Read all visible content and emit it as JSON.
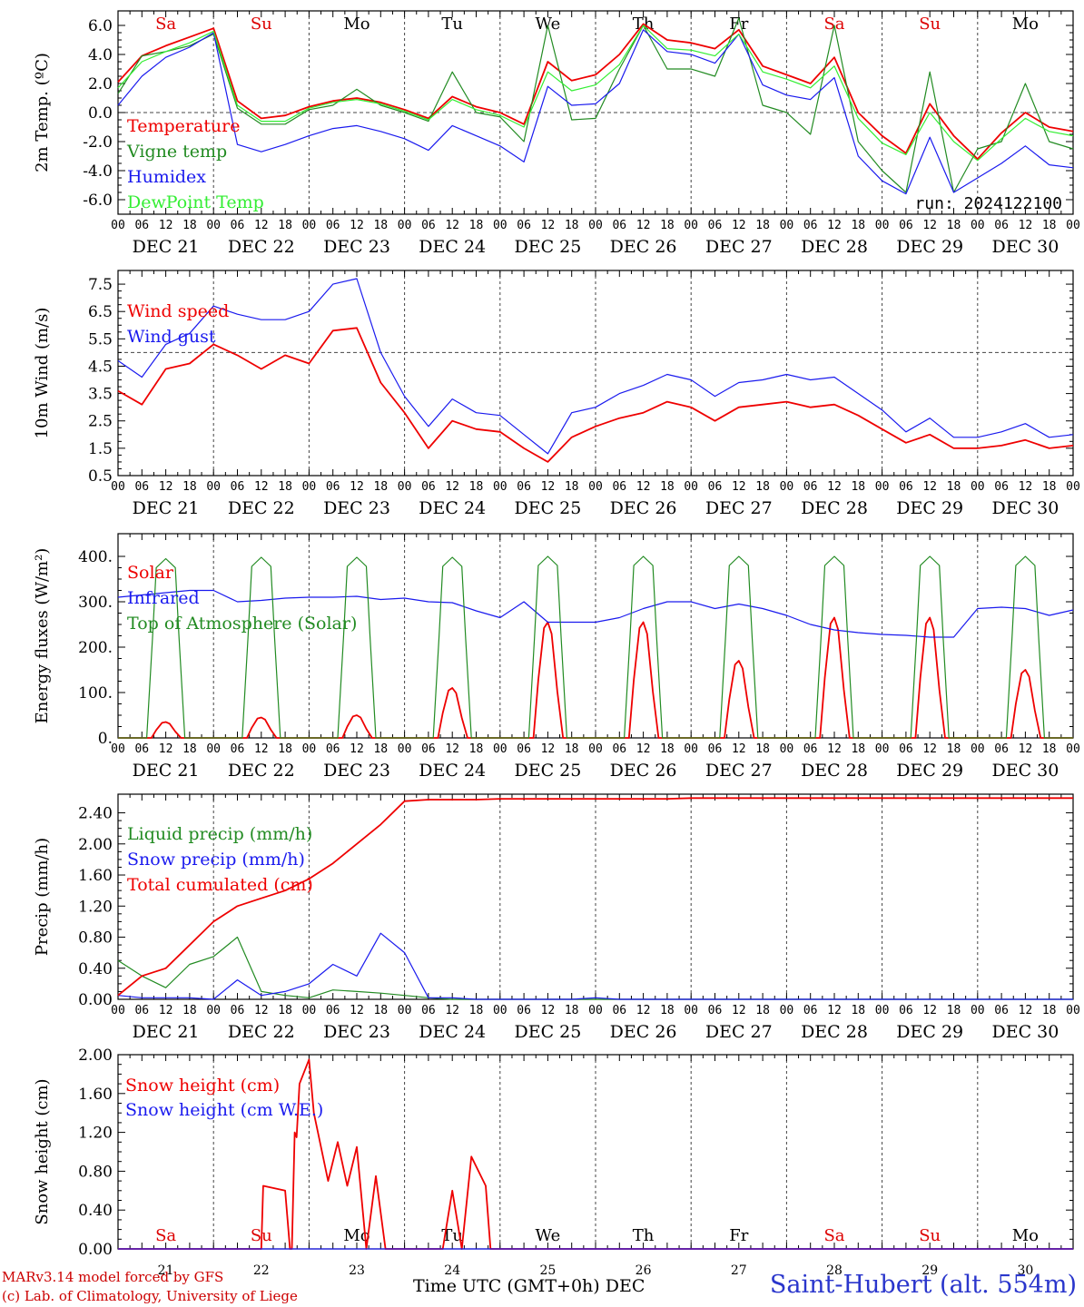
{
  "days": [
    "Sa",
    "Su",
    "Mo",
    "Tu",
    "We",
    "Th",
    "Fr",
    "Sa",
    "Su",
    "Mo"
  ],
  "dates": [
    "DEC 21",
    "DEC 22",
    "DEC 23",
    "DEC 24",
    "DEC 25",
    "DEC 26",
    "DEC 27",
    "DEC 28",
    "DEC 29",
    "DEC 30"
  ],
  "bottom_dates": [
    "21",
    "22",
    "23",
    "24",
    "25",
    "26",
    "27",
    "28",
    "29",
    "30"
  ],
  "hour_ticks": [
    "00",
    "06",
    "12",
    "18"
  ],
  "colors": {
    "weekend": "#dd0000",
    "weekday": "#000000",
    "red": "#ee0000",
    "green": "#228b22",
    "blue": "#1a1aee",
    "lightgreen": "#33ee33"
  },
  "footer": {
    "model": "MARv3.14 model forced by GFS",
    "credit": "(c) Lab. of Climatology, University of Liege",
    "xlabel": "Time UTC (GMT+0h) DEC",
    "station": "Saint-Hubert (alt. 554m)"
  },
  "chart_data": [
    {
      "type": "line",
      "ylabel": "2m Temp. (ºC)",
      "ylim": [
        -7,
        7
      ],
      "yticks": [
        "6.0",
        "4.0",
        "2.0",
        "0.0",
        "-2.0",
        "-4.0",
        "-6.0"
      ],
      "ytick_values": [
        6,
        4,
        2,
        0,
        -2,
        -4,
        -6
      ],
      "annotation": "run: 2024122100",
      "x_days": [
        0,
        0.25,
        0.5,
        0.75,
        1,
        1.25,
        1.5,
        1.75,
        2,
        2.25,
        2.5,
        2.75,
        3,
        3.25,
        3.5,
        3.75,
        4,
        4.25,
        4.5,
        4.75,
        5,
        5.25,
        5.5,
        5.75,
        6,
        6.25,
        6.5,
        6.75,
        7,
        7.25,
        7.5,
        7.75,
        8,
        8.25,
        8.5,
        8.75,
        9,
        9.25,
        9.5,
        9.75,
        10
      ],
      "series": [
        {
          "name": "Temperature",
          "color": "#ee0000",
          "values": [
            2.1,
            3.9,
            4.6,
            5.2,
            5.8,
            0.8,
            -0.4,
            -0.2,
            0.4,
            0.8,
            1.0,
            0.7,
            0.2,
            -0.4,
            1.1,
            0.4,
            0.0,
            -0.8,
            3.5,
            2.2,
            2.6,
            4.0,
            6.1,
            5.0,
            4.8,
            4.4,
            5.7,
            3.2,
            2.6,
            2.0,
            3.8,
            0.0,
            -1.6,
            -2.8,
            0.6,
            -1.6,
            -3.2,
            -1.4,
            0.0,
            -1.0,
            -1.3
          ]
        },
        {
          "name": "Vigne temp",
          "color": "#228b22",
          "values": [
            1.3,
            3.9,
            4.2,
            4.6,
            5.4,
            0.3,
            -0.8,
            -0.8,
            0.2,
            0.5,
            1.6,
            0.5,
            0.0,
            -0.6,
            2.8,
            0.0,
            -0.3,
            -2.0,
            6.0,
            -0.5,
            -0.4,
            3.0,
            6.0,
            3.0,
            3.0,
            2.5,
            6.5,
            0.5,
            0.0,
            -1.5,
            6.0,
            -2.0,
            -4.0,
            -5.5,
            2.8,
            -5.5,
            -2.5,
            -2.0,
            2.0,
            -2.0,
            -2.5
          ]
        },
        {
          "name": "Humidex",
          "color": "#1a1aee",
          "values": [
            0.5,
            2.5,
            3.8,
            4.5,
            5.5,
            -2.2,
            -2.7,
            -2.2,
            -1.6,
            -1.1,
            -0.9,
            -1.3,
            -1.8,
            -2.6,
            -0.9,
            -1.6,
            -2.3,
            -3.4,
            1.8,
            0.5,
            0.6,
            2.0,
            5.7,
            4.2,
            4.0,
            3.4,
            5.4,
            1.9,
            1.2,
            0.9,
            2.4,
            -3.0,
            -4.7,
            -5.6,
            -1.7,
            -5.5,
            -4.5,
            -3.5,
            -2.3,
            -3.6,
            -3.8
          ]
        },
        {
          "name": "DewPoint Temp",
          "color": "#33ee33",
          "values": [
            1.7,
            3.5,
            4.2,
            4.8,
            5.6,
            0.5,
            -0.6,
            -0.6,
            0.3,
            0.7,
            0.9,
            0.6,
            0.1,
            -0.5,
            0.9,
            0.2,
            -0.2,
            -1.0,
            2.8,
            1.5,
            1.9,
            3.3,
            6.0,
            4.4,
            4.3,
            3.9,
            5.4,
            2.8,
            2.3,
            1.7,
            3.2,
            -0.4,
            -2.1,
            -2.9,
            0.0,
            -2.0,
            -3.3,
            -1.8,
            -0.4,
            -1.3,
            -1.6
          ]
        }
      ]
    },
    {
      "type": "line",
      "ylabel": "10m Wind (m/s)",
      "ylim": [
        0.5,
        8.0
      ],
      "yticks": [
        "7.5",
        "6.5",
        "5.5",
        "4.5",
        "3.5",
        "2.5",
        "1.5",
        "0.5"
      ],
      "ytick_values": [
        7.5,
        6.5,
        5.5,
        4.5,
        3.5,
        2.5,
        1.5,
        0.5
      ],
      "x_days": [
        0,
        0.25,
        0.5,
        0.75,
        1,
        1.25,
        1.5,
        1.75,
        2,
        2.25,
        2.5,
        2.75,
        3,
        3.25,
        3.5,
        3.75,
        4,
        4.25,
        4.5,
        4.75,
        5,
        5.25,
        5.5,
        5.75,
        6,
        6.25,
        6.5,
        6.75,
        7,
        7.25,
        7.5,
        7.75,
        8,
        8.25,
        8.5,
        8.75,
        9,
        9.25,
        9.5,
        9.75,
        10
      ],
      "series": [
        {
          "name": "Wind speed",
          "color": "#ee0000",
          "values": [
            3.6,
            3.1,
            4.4,
            4.6,
            5.3,
            4.9,
            4.4,
            4.9,
            4.6,
            5.8,
            5.9,
            3.9,
            2.8,
            1.5,
            2.5,
            2.2,
            2.1,
            1.5,
            1.0,
            1.9,
            2.3,
            2.6,
            2.8,
            3.2,
            3.0,
            2.5,
            3.0,
            3.1,
            3.2,
            3.0,
            3.1,
            2.7,
            2.2,
            1.7,
            2.0,
            1.5,
            1.5,
            1.6,
            1.8,
            1.5,
            1.6
          ]
        },
        {
          "name": "Wind gust",
          "color": "#1a1aee",
          "values": [
            4.7,
            4.1,
            5.3,
            5.7,
            6.7,
            6.4,
            6.2,
            6.2,
            6.5,
            7.5,
            7.7,
            5.0,
            3.4,
            2.3,
            3.3,
            2.8,
            2.7,
            2.0,
            1.3,
            2.8,
            3.0,
            3.5,
            3.8,
            4.2,
            4.0,
            3.4,
            3.9,
            4.0,
            4.2,
            4.0,
            4.1,
            3.5,
            2.9,
            2.1,
            2.6,
            1.9,
            1.9,
            2.1,
            2.4,
            1.9,
            2.0
          ]
        }
      ]
    },
    {
      "type": "line",
      "ylabel": "Energy fluxes (W/m²)",
      "ylim": [
        0,
        450
      ],
      "yticks": [
        "400.",
        "300.",
        "200.",
        "100.",
        "0."
      ],
      "ytick_values": [
        400,
        300,
        200,
        100,
        0
      ],
      "x_days": [
        0,
        0.25,
        0.5,
        0.75,
        1,
        1.25,
        1.5,
        1.75,
        2,
        2.25,
        2.5,
        2.75,
        3,
        3.25,
        3.5,
        3.75,
        4,
        4.25,
        4.5,
        4.75,
        5,
        5.25,
        5.5,
        5.75,
        6,
        6.25,
        6.5,
        6.75,
        7,
        7.25,
        7.5,
        7.75,
        8,
        8.25,
        8.5,
        8.75,
        9,
        9.25,
        9.5,
        9.75,
        10
      ],
      "series": [
        {
          "name": "Solar",
          "color": "#ee0000",
          "peaks": [
            35,
            45,
            50,
            110,
            255,
            255,
            170,
            265,
            265,
            150
          ]
        },
        {
          "name": "Infrared",
          "color": "#1a1aee",
          "values": [
            310,
            315,
            320,
            325,
            325,
            300,
            303,
            308,
            310,
            310,
            312,
            305,
            308,
            300,
            298,
            280,
            265,
            300,
            255,
            255,
            255,
            265,
            285,
            300,
            300,
            285,
            295,
            285,
            270,
            250,
            238,
            232,
            228,
            226,
            222,
            222,
            285,
            288,
            285,
            270,
            282
          ]
        },
        {
          "name": "Top of Atmosphere (Solar)",
          "color": "#228b22",
          "peaks": [
            395,
            398,
            398,
            398,
            400,
            400,
            400,
            400,
            400,
            400
          ]
        }
      ]
    },
    {
      "type": "line",
      "ylabel": "Precip (mm/h)",
      "ylim": [
        0,
        2.64
      ],
      "yticks": [
        "2.40",
        "2.00",
        "1.60",
        "1.20",
        "0.80",
        "0.40",
        "0.00"
      ],
      "ytick_values": [
        2.4,
        2.0,
        1.6,
        1.2,
        0.8,
        0.4,
        0.0
      ],
      "x_days": [
        0,
        0.25,
        0.5,
        0.75,
        1,
        1.25,
        1.5,
        1.75,
        2,
        2.25,
        2.5,
        2.75,
        3,
        3.25,
        3.5,
        3.75,
        4,
        4.25,
        4.5,
        4.75,
        5,
        5.25,
        5.5,
        5.75,
        6,
        6.25,
        6.5,
        6.75,
        7,
        7.25,
        7.5,
        7.75,
        8,
        8.25,
        8.5,
        8.75,
        9,
        9.25,
        9.5,
        9.75,
        10
      ],
      "series": [
        {
          "name": "Liquid precip (mm/h)",
          "color": "#228b22",
          "values": [
            0.5,
            0.3,
            0.15,
            0.45,
            0.55,
            0.8,
            0.1,
            0.05,
            0.02,
            0.12,
            0.1,
            0.08,
            0.05,
            0.02,
            0.0,
            0.0,
            0.0,
            0.0,
            0.0,
            0.0,
            0.0,
            0.0,
            0.0,
            0.0,
            0.0,
            0.0,
            0.0,
            0.0,
            0.0,
            0.0,
            0.0,
            0.0,
            0.0,
            0.0,
            0.0,
            0.0,
            0.0,
            0.0,
            0.0,
            0.0,
            0.0
          ]
        },
        {
          "name": "Snow precip (mm/h)",
          "color": "#1a1aee",
          "values": [
            0.05,
            0.02,
            0.02,
            0.02,
            0.0,
            0.25,
            0.05,
            0.1,
            0.2,
            0.45,
            0.3,
            0.85,
            0.6,
            0.02,
            0.02,
            0.0,
            0.0,
            0.0,
            0.0,
            0.0,
            0.02,
            0.0,
            0.0,
            0.0,
            0.0,
            0.0,
            0.0,
            0.0,
            0.0,
            0.0,
            0.0,
            0.0,
            0.0,
            0.0,
            0.0,
            0.0,
            0.0,
            0.0,
            0.0,
            0.0,
            0.0
          ]
        },
        {
          "name": "Total cumulated (cm)",
          "color": "#ee0000",
          "values": [
            0.05,
            0.3,
            0.4,
            0.7,
            1.0,
            1.2,
            1.3,
            1.4,
            1.55,
            1.75,
            2.0,
            2.25,
            2.55,
            2.57,
            2.57,
            2.57,
            2.58,
            2.58,
            2.58,
            2.58,
            2.58,
            2.58,
            2.58,
            2.58,
            2.59,
            2.59,
            2.59,
            2.59,
            2.59,
            2.59,
            2.59,
            2.59,
            2.59,
            2.59,
            2.59,
            2.59,
            2.59,
            2.59,
            2.59,
            2.59,
            2.59
          ]
        }
      ]
    },
    {
      "type": "line",
      "ylabel": "Snow height (cm)",
      "ylim": [
        0,
        2.0
      ],
      "yticks": [
        "2.00",
        "1.60",
        "1.20",
        "0.80",
        "0.40",
        "0.00"
      ],
      "ytick_values": [
        2.0,
        1.6,
        1.2,
        0.8,
        0.4,
        0.0
      ],
      "series": [
        {
          "name": "Snow height (cm)",
          "color": "#ee0000",
          "x": [
            0,
            1.5,
            1.52,
            1.75,
            1.8,
            1.82,
            1.85,
            1.87,
            1.9,
            2.0,
            2.05,
            2.2,
            2.3,
            2.4,
            2.5,
            2.6,
            2.7,
            2.8,
            2.9,
            3.0,
            3.1,
            3.2,
            3.3,
            3.4,
            3.5,
            3.6,
            3.7,
            3.85,
            3.9,
            4.0,
            10
          ],
          "values": [
            0,
            0,
            0.65,
            0.6,
            0.0,
            0.0,
            1.2,
            1.15,
            1.7,
            1.95,
            1.4,
            0.7,
            1.1,
            0.65,
            1.05,
            0.0,
            0.75,
            0.0,
            0.0,
            0.0,
            0.0,
            0.0,
            0.0,
            0.0,
            0.6,
            0.0,
            0.95,
            0.65,
            0.0,
            0,
            0
          ]
        },
        {
          "name": "Snow height (cm W.E.)",
          "color": "#1a1aee",
          "x": [
            0,
            10
          ],
          "values": [
            0,
            0
          ]
        }
      ]
    }
  ]
}
